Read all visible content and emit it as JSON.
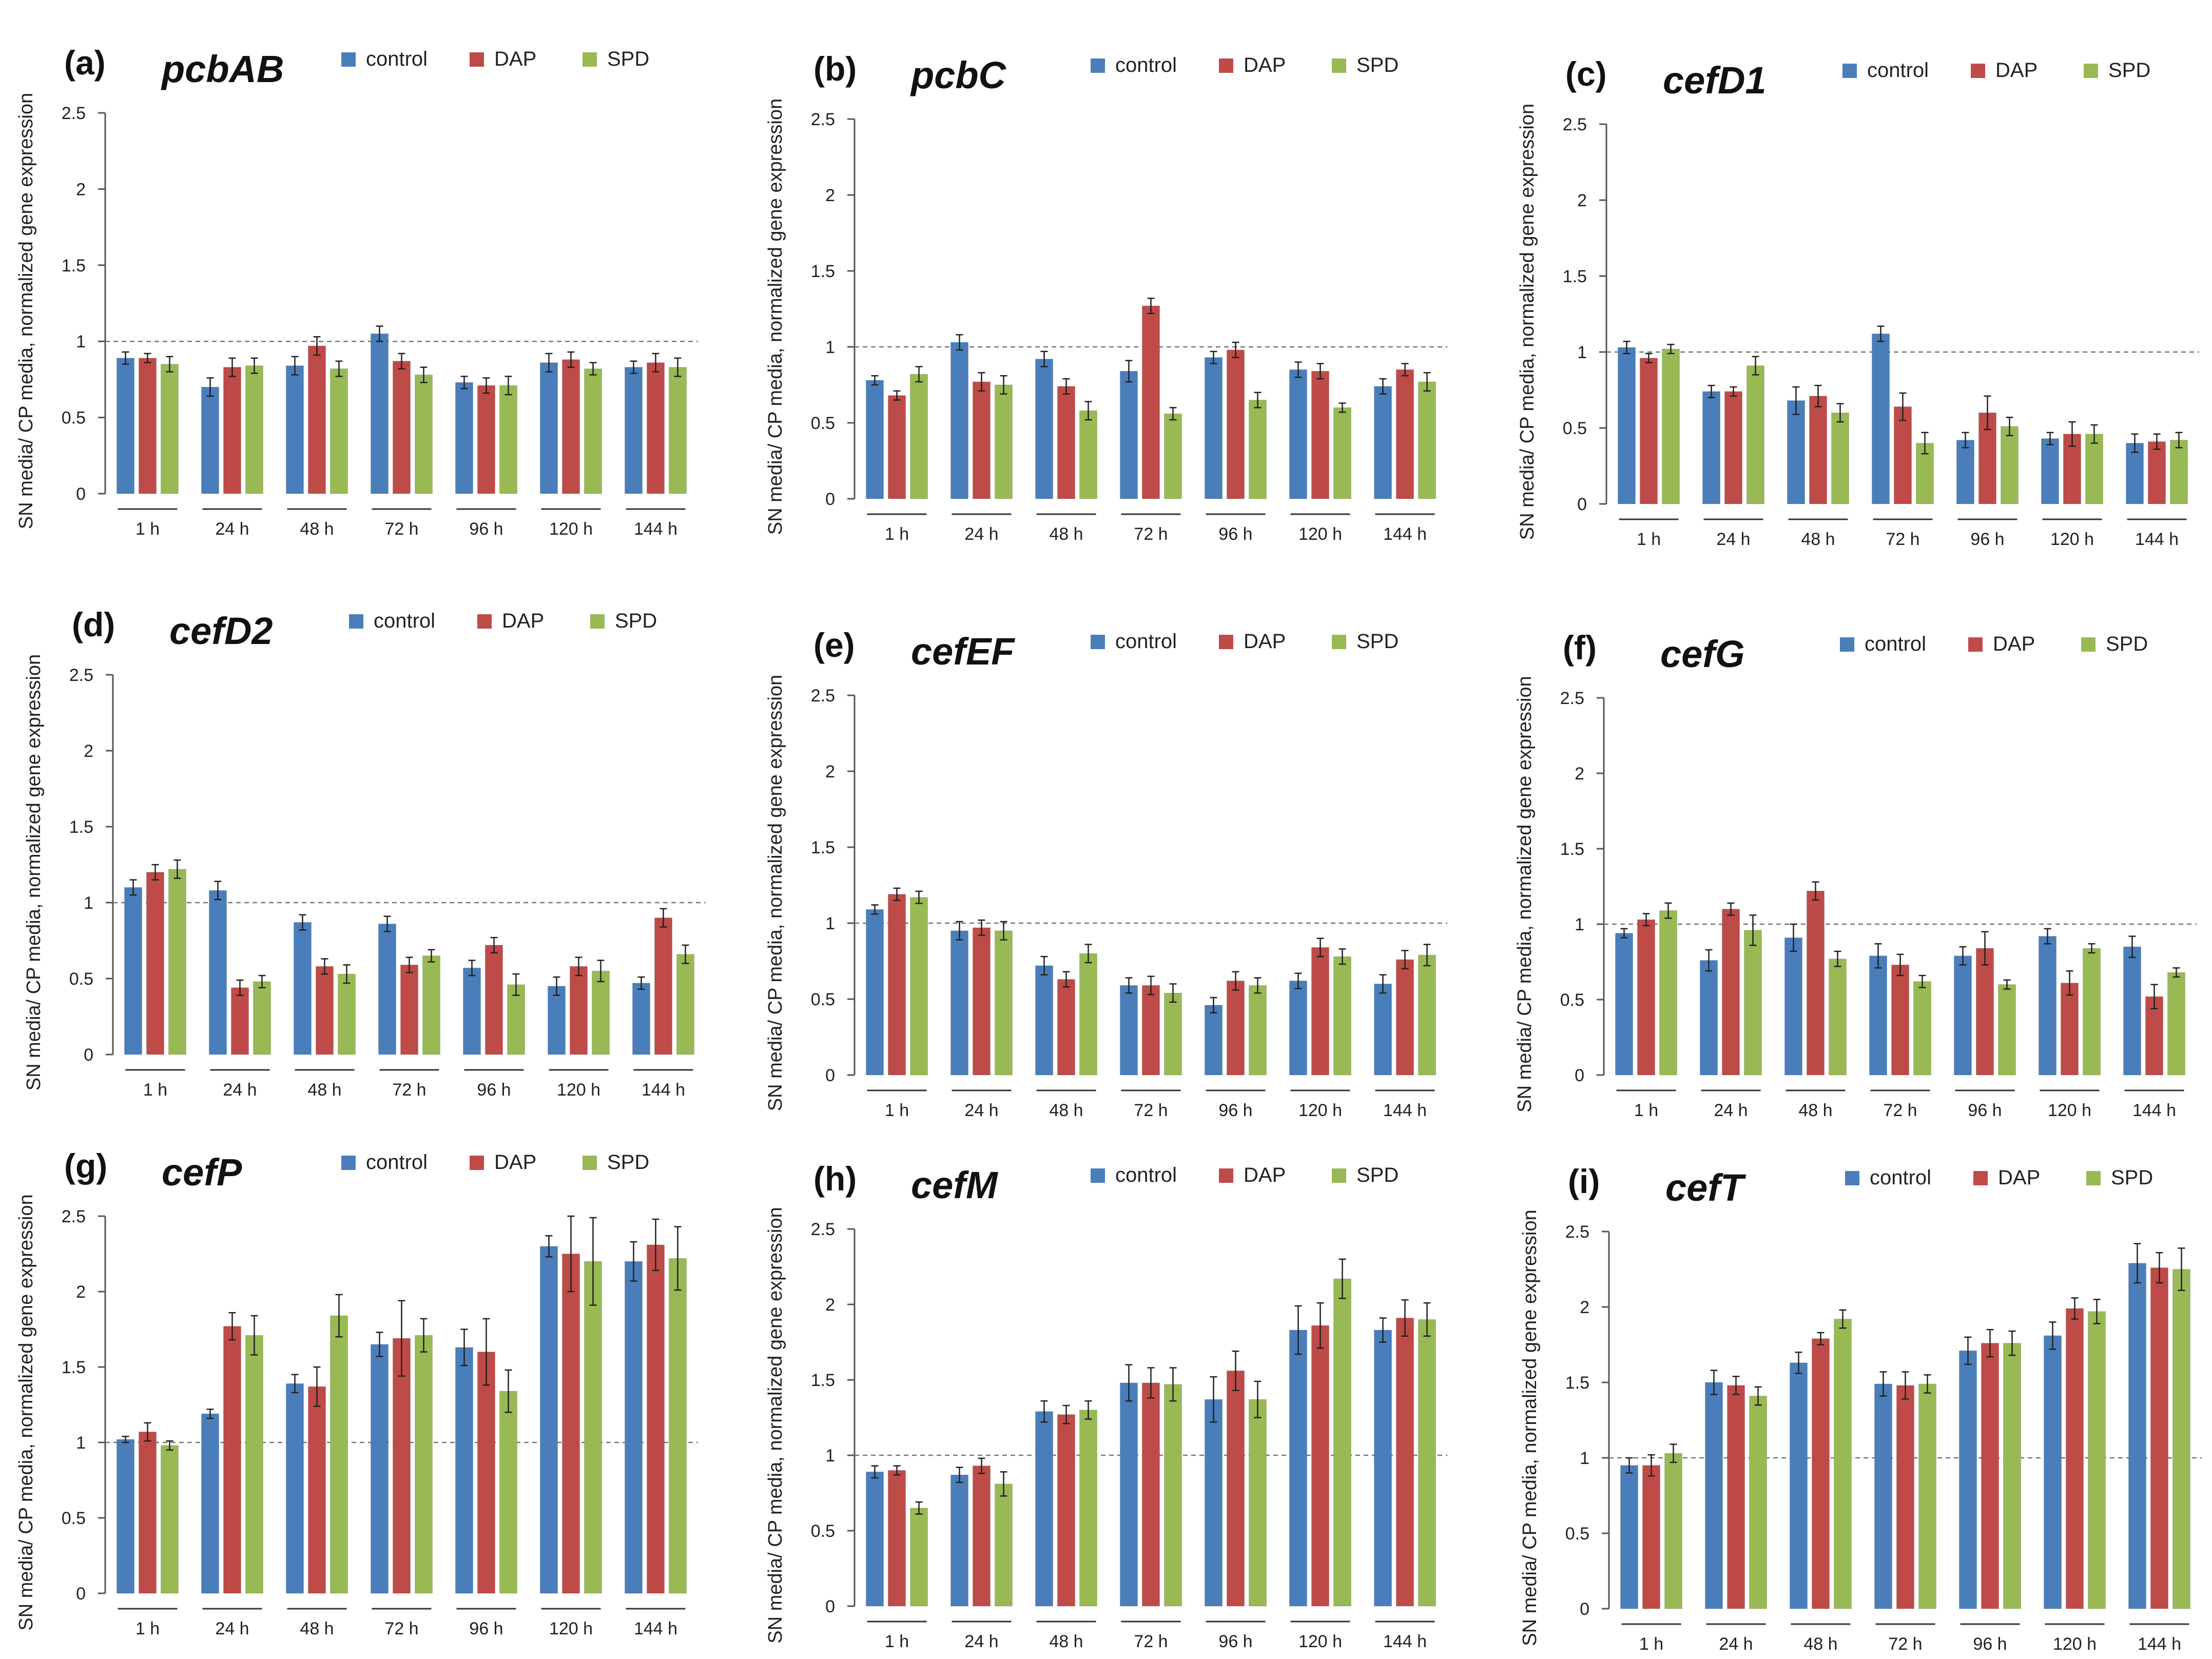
{
  "figure": {
    "ylabel": "SN media/ CP media, normalized gene expression",
    "legend": [
      "control",
      "DAP",
      "SPD"
    ],
    "colors": {
      "control": "#4a7ebb",
      "DAP": "#be4b48",
      "SPD": "#98b954",
      "error": "#202020",
      "axis": "#555555",
      "reference": "#777777"
    },
    "reference_line": 1,
    "ylim": [
      0,
      2.5
    ],
    "yticks": [
      "0",
      "0.5",
      "1",
      "1.5",
      "2",
      "2.5"
    ],
    "categories": [
      "1 h",
      "24 h",
      "48 h",
      "72 h",
      "96 h",
      "120 h",
      "144 h"
    ]
  },
  "chart_data": [
    {
      "type": "bar",
      "panel": "(a)",
      "title": "pcbAB",
      "categories": [
        "1 h",
        "24 h",
        "48 h",
        "72 h",
        "96 h",
        "120 h",
        "144 h"
      ],
      "ylim": [
        0,
        2.5
      ],
      "ylabel": "SN media/ CP media, normalized gene expression",
      "series": [
        {
          "name": "control",
          "values": [
            0.89,
            0.7,
            0.84,
            1.05,
            0.73,
            0.86,
            0.83
          ],
          "errors": [
            0.04,
            0.06,
            0.06,
            0.05,
            0.04,
            0.06,
            0.04
          ]
        },
        {
          "name": "DAP",
          "values": [
            0.89,
            0.83,
            0.97,
            0.87,
            0.71,
            0.88,
            0.86
          ],
          "errors": [
            0.03,
            0.06,
            0.06,
            0.05,
            0.05,
            0.05,
            0.06
          ]
        },
        {
          "name": "SPD",
          "values": [
            0.85,
            0.84,
            0.82,
            0.78,
            0.71,
            0.82,
            0.83
          ],
          "errors": [
            0.05,
            0.05,
            0.05,
            0.05,
            0.06,
            0.04,
            0.06
          ]
        }
      ]
    },
    {
      "type": "bar",
      "panel": "(b)",
      "title": "pcbC",
      "categories": [
        "1 h",
        "24 h",
        "48 h",
        "72 h",
        "96 h",
        "120 h",
        "144 h"
      ],
      "ylim": [
        0,
        2.5
      ],
      "ylabel": "SN media/ CP media, normalized gene expression",
      "series": [
        {
          "name": "control",
          "values": [
            0.78,
            1.03,
            0.92,
            0.84,
            0.93,
            0.85,
            0.74
          ],
          "errors": [
            0.03,
            0.05,
            0.05,
            0.07,
            0.04,
            0.05,
            0.05
          ]
        },
        {
          "name": "DAP",
          "values": [
            0.68,
            0.77,
            0.74,
            1.27,
            0.98,
            0.84,
            0.85
          ],
          "errors": [
            0.03,
            0.06,
            0.05,
            0.05,
            0.05,
            0.05,
            0.04
          ]
        },
        {
          "name": "SPD",
          "values": [
            0.82,
            0.75,
            0.58,
            0.56,
            0.65,
            0.6,
            0.77
          ],
          "errors": [
            0.05,
            0.06,
            0.06,
            0.04,
            0.05,
            0.03,
            0.06
          ]
        }
      ]
    },
    {
      "type": "bar",
      "panel": "(c)",
      "title": "cefD1",
      "categories": [
        "1 h",
        "24 h",
        "48 h",
        "72 h",
        "96 h",
        "120 h",
        "144 h"
      ],
      "ylim": [
        0,
        2.5
      ],
      "ylabel": "SN media/ CP media, normalized gene expression",
      "series": [
        {
          "name": "control",
          "values": [
            1.03,
            0.74,
            0.68,
            1.12,
            0.42,
            0.43,
            0.4
          ],
          "errors": [
            0.04,
            0.04,
            0.09,
            0.05,
            0.05,
            0.04,
            0.06
          ]
        },
        {
          "name": "DAP",
          "values": [
            0.96,
            0.74,
            0.71,
            0.64,
            0.6,
            0.46,
            0.41
          ],
          "errors": [
            0.03,
            0.03,
            0.07,
            0.09,
            0.11,
            0.08,
            0.05
          ]
        },
        {
          "name": "SPD",
          "values": [
            1.02,
            0.91,
            0.6,
            0.4,
            0.51,
            0.46,
            0.42
          ],
          "errors": [
            0.03,
            0.06,
            0.06,
            0.07,
            0.06,
            0.06,
            0.05
          ]
        }
      ]
    },
    {
      "type": "bar",
      "panel": "(d)",
      "title": "cefD2",
      "categories": [
        "1 h",
        "24 h",
        "48 h",
        "72 h",
        "96 h",
        "120 h",
        "144 h"
      ],
      "ylim": [
        0,
        2.5
      ],
      "ylabel": "SN media/ CP media, normalized gene expression",
      "series": [
        {
          "name": "control",
          "values": [
            1.1,
            1.08,
            0.87,
            0.86,
            0.57,
            0.45,
            0.47
          ],
          "errors": [
            0.05,
            0.06,
            0.05,
            0.05,
            0.05,
            0.06,
            0.04
          ]
        },
        {
          "name": "DAP",
          "values": [
            1.2,
            0.44,
            0.58,
            0.59,
            0.72,
            0.58,
            0.9
          ],
          "errors": [
            0.05,
            0.05,
            0.05,
            0.05,
            0.05,
            0.06,
            0.06
          ]
        },
        {
          "name": "SPD",
          "values": [
            1.22,
            0.48,
            0.53,
            0.65,
            0.46,
            0.55,
            0.66
          ],
          "errors": [
            0.06,
            0.04,
            0.06,
            0.04,
            0.07,
            0.07,
            0.06
          ]
        }
      ]
    },
    {
      "type": "bar",
      "panel": "(e)",
      "title": "cefEF",
      "categories": [
        "1 h",
        "24 h",
        "48 h",
        "72 h",
        "96 h",
        "120 h",
        "144 h"
      ],
      "ylim": [
        0,
        2.5
      ],
      "ylabel": "SN media/ CP media, normalized gene expression",
      "series": [
        {
          "name": "control",
          "values": [
            1.09,
            0.95,
            0.72,
            0.59,
            0.46,
            0.62,
            0.6
          ],
          "errors": [
            0.03,
            0.06,
            0.06,
            0.05,
            0.05,
            0.05,
            0.06
          ]
        },
        {
          "name": "DAP",
          "values": [
            1.19,
            0.97,
            0.63,
            0.59,
            0.62,
            0.84,
            0.76
          ],
          "errors": [
            0.04,
            0.05,
            0.05,
            0.06,
            0.06,
            0.06,
            0.06
          ]
        },
        {
          "name": "SPD",
          "values": [
            1.17,
            0.95,
            0.8,
            0.54,
            0.59,
            0.78,
            0.79
          ],
          "errors": [
            0.04,
            0.06,
            0.06,
            0.06,
            0.05,
            0.05,
            0.07
          ]
        }
      ]
    },
    {
      "type": "bar",
      "panel": "(f)",
      "title": "cefG",
      "categories": [
        "1 h",
        "24 h",
        "48 h",
        "72 h",
        "96 h",
        "120 h",
        "144 h"
      ],
      "ylim": [
        0,
        2.5
      ],
      "ylabel": "SN media/ CP media, normalized gene expression",
      "series": [
        {
          "name": "control",
          "values": [
            0.94,
            0.76,
            0.91,
            0.79,
            0.79,
            0.92,
            0.85
          ],
          "errors": [
            0.03,
            0.07,
            0.09,
            0.08,
            0.06,
            0.05,
            0.07
          ]
        },
        {
          "name": "DAP",
          "values": [
            1.03,
            1.1,
            1.22,
            0.73,
            0.84,
            0.61,
            0.52
          ],
          "errors": [
            0.04,
            0.04,
            0.06,
            0.07,
            0.11,
            0.08,
            0.08
          ]
        },
        {
          "name": "SPD",
          "values": [
            1.09,
            0.96,
            0.77,
            0.62,
            0.6,
            0.84,
            0.68
          ],
          "errors": [
            0.05,
            0.1,
            0.05,
            0.04,
            0.03,
            0.03,
            0.03
          ]
        }
      ]
    },
    {
      "type": "bar",
      "panel": "(g)",
      "title": "cefP",
      "categories": [
        "1 h",
        "24 h",
        "48 h",
        "72 h",
        "96 h",
        "120 h",
        "144 h"
      ],
      "ylim": [
        0,
        2.5
      ],
      "ylabel": "SN media/ CP media, normalized gene expression",
      "series": [
        {
          "name": "control",
          "values": [
            1.02,
            1.19,
            1.39,
            1.65,
            1.63,
            2.3,
            2.2
          ],
          "errors": [
            0.02,
            0.03,
            0.06,
            0.08,
            0.12,
            0.07,
            0.13
          ]
        },
        {
          "name": "DAP",
          "values": [
            1.07,
            1.77,
            1.37,
            1.69,
            1.6,
            2.25,
            2.31
          ],
          "errors": [
            0.06,
            0.09,
            0.13,
            0.25,
            0.22,
            0.25,
            0.17
          ]
        },
        {
          "name": "SPD",
          "values": [
            0.98,
            1.71,
            1.84,
            1.71,
            1.34,
            2.2,
            2.22
          ],
          "errors": [
            0.03,
            0.13,
            0.14,
            0.11,
            0.14,
            0.29,
            0.21
          ]
        }
      ]
    },
    {
      "type": "bar",
      "panel": "(h)",
      "title": "cefM",
      "categories": [
        "1 h",
        "24 h",
        "48 h",
        "72 h",
        "96 h",
        "120 h",
        "144 h"
      ],
      "ylim": [
        0,
        2.5
      ],
      "ylabel": "SN media/ CP media, normalized gene expression",
      "series": [
        {
          "name": "control",
          "values": [
            0.89,
            0.87,
            1.29,
            1.48,
            1.37,
            1.83,
            1.83
          ],
          "errors": [
            0.04,
            0.05,
            0.07,
            0.12,
            0.15,
            0.16,
            0.08
          ]
        },
        {
          "name": "DAP",
          "values": [
            0.9,
            0.93,
            1.27,
            1.48,
            1.56,
            1.86,
            1.91
          ],
          "errors": [
            0.03,
            0.05,
            0.06,
            0.1,
            0.13,
            0.15,
            0.12
          ]
        },
        {
          "name": "SPD",
          "values": [
            0.65,
            0.81,
            1.3,
            1.47,
            1.37,
            2.17,
            1.9
          ],
          "errors": [
            0.04,
            0.08,
            0.06,
            0.11,
            0.12,
            0.13,
            0.11
          ]
        }
      ]
    },
    {
      "type": "bar",
      "panel": "(i)",
      "title": "cefT",
      "categories": [
        "1 h",
        "24 h",
        "48 h",
        "72 h",
        "96 h",
        "120 h",
        "144 h"
      ],
      "ylim": [
        0,
        2.5
      ],
      "ylabel": "SN media/ CP media, normalized gene expression",
      "series": [
        {
          "name": "control",
          "values": [
            0.95,
            1.5,
            1.63,
            1.49,
            1.71,
            1.81,
            2.29
          ],
          "errors": [
            0.05,
            0.08,
            0.07,
            0.08,
            0.09,
            0.09,
            0.13
          ]
        },
        {
          "name": "DAP",
          "values": [
            0.95,
            1.48,
            1.79,
            1.48,
            1.76,
            1.99,
            2.26
          ],
          "errors": [
            0.07,
            0.06,
            0.04,
            0.09,
            0.09,
            0.07,
            0.1
          ]
        },
        {
          "name": "SPD",
          "values": [
            1.03,
            1.41,
            1.92,
            1.49,
            1.76,
            1.97,
            2.25
          ],
          "errors": [
            0.06,
            0.06,
            0.06,
            0.06,
            0.08,
            0.08,
            0.14
          ]
        }
      ]
    }
  ]
}
